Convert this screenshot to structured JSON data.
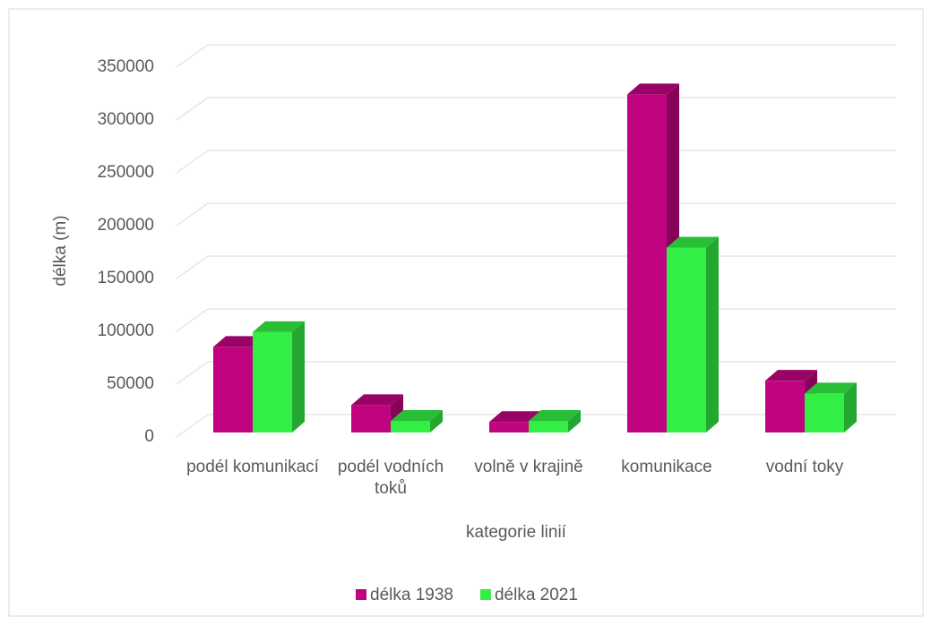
{
  "chart_data": {
    "type": "bar",
    "x_label": "kategorie linií",
    "y_label": "délka (m)",
    "categories": [
      "podél komunikací",
      "podél vodních toků",
      "volně v krajině",
      "komunikace",
      "vodní toky"
    ],
    "series": [
      {
        "name": "délka 1938",
        "color": "#c0047f",
        "values": [
          81000,
          26000,
          10000,
          320000,
          49000
        ]
      },
      {
        "name": "délka 2021",
        "color": "#33ee44",
        "values": [
          95000,
          11000,
          11000,
          175000,
          37000
        ]
      }
    ],
    "ylim": [
      0,
      350000
    ],
    "yticks": [
      0,
      50000,
      100000,
      150000,
      200000,
      250000,
      300000,
      350000
    ],
    "grid": true,
    "legend": "bottom"
  }
}
